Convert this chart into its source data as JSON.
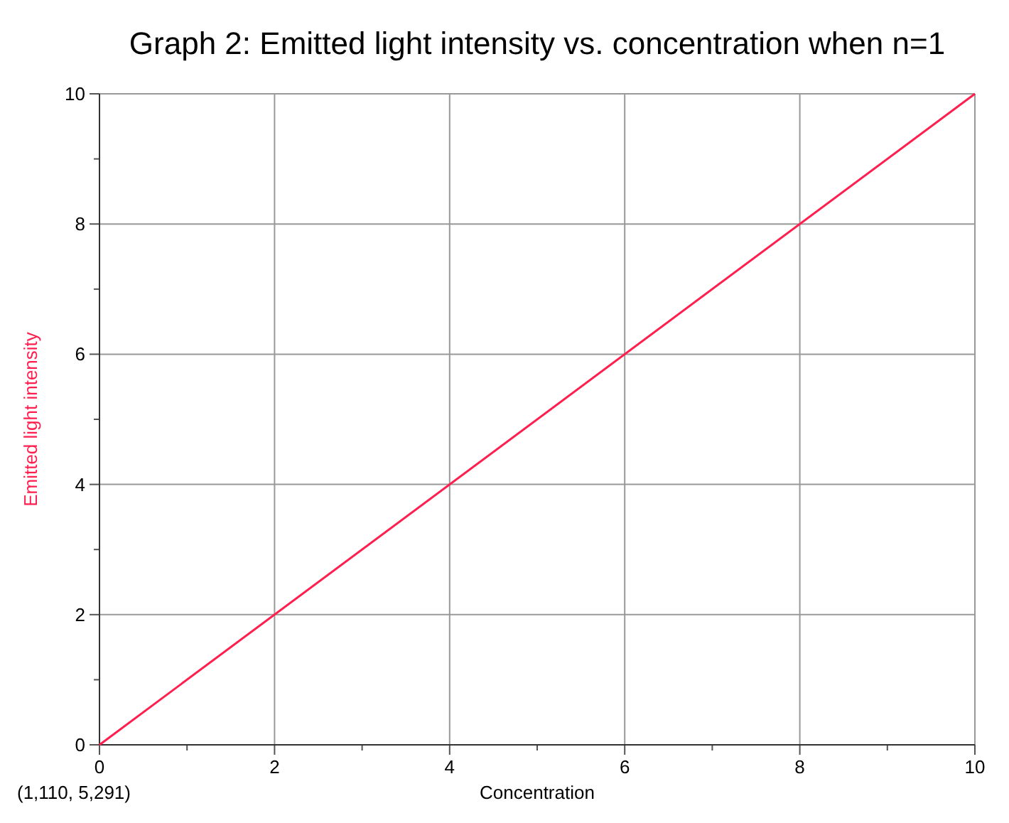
{
  "chart_data": {
    "type": "line",
    "title": "Graph 2: Emitted light intensity vs. concentration when n=1",
    "xlabel": "Concentration",
    "ylabel": "Emitted light intensity",
    "x": [
      0,
      10
    ],
    "series": [
      {
        "color": "#ff1f4f",
        "values": [
          0,
          10
        ]
      }
    ],
    "xlim": [
      0,
      10
    ],
    "ylim": [
      0,
      10
    ],
    "xticks": [
      0,
      {
        "value": 1,
        "label": null
      },
      2,
      {
        "value": 3,
        "label": null
      },
      4,
      {
        "value": 5,
        "label": null
      },
      6,
      {
        "value": 7,
        "label": null
      },
      8,
      {
        "value": 9,
        "label": null
      },
      10
    ],
    "yticks": [
      0,
      {
        "value": 1,
        "label": null
      },
      2,
      {
        "value": 3,
        "label": null
      },
      4,
      {
        "value": 5,
        "label": null
      },
      6,
      {
        "value": 7,
        "label": null
      },
      8,
      {
        "value": 9,
        "label": null
      },
      10
    ],
    "grid": true,
    "marker": "none",
    "line_style": "solid",
    "annotations": [
      "(1,110, 5,291)"
    ]
  }
}
